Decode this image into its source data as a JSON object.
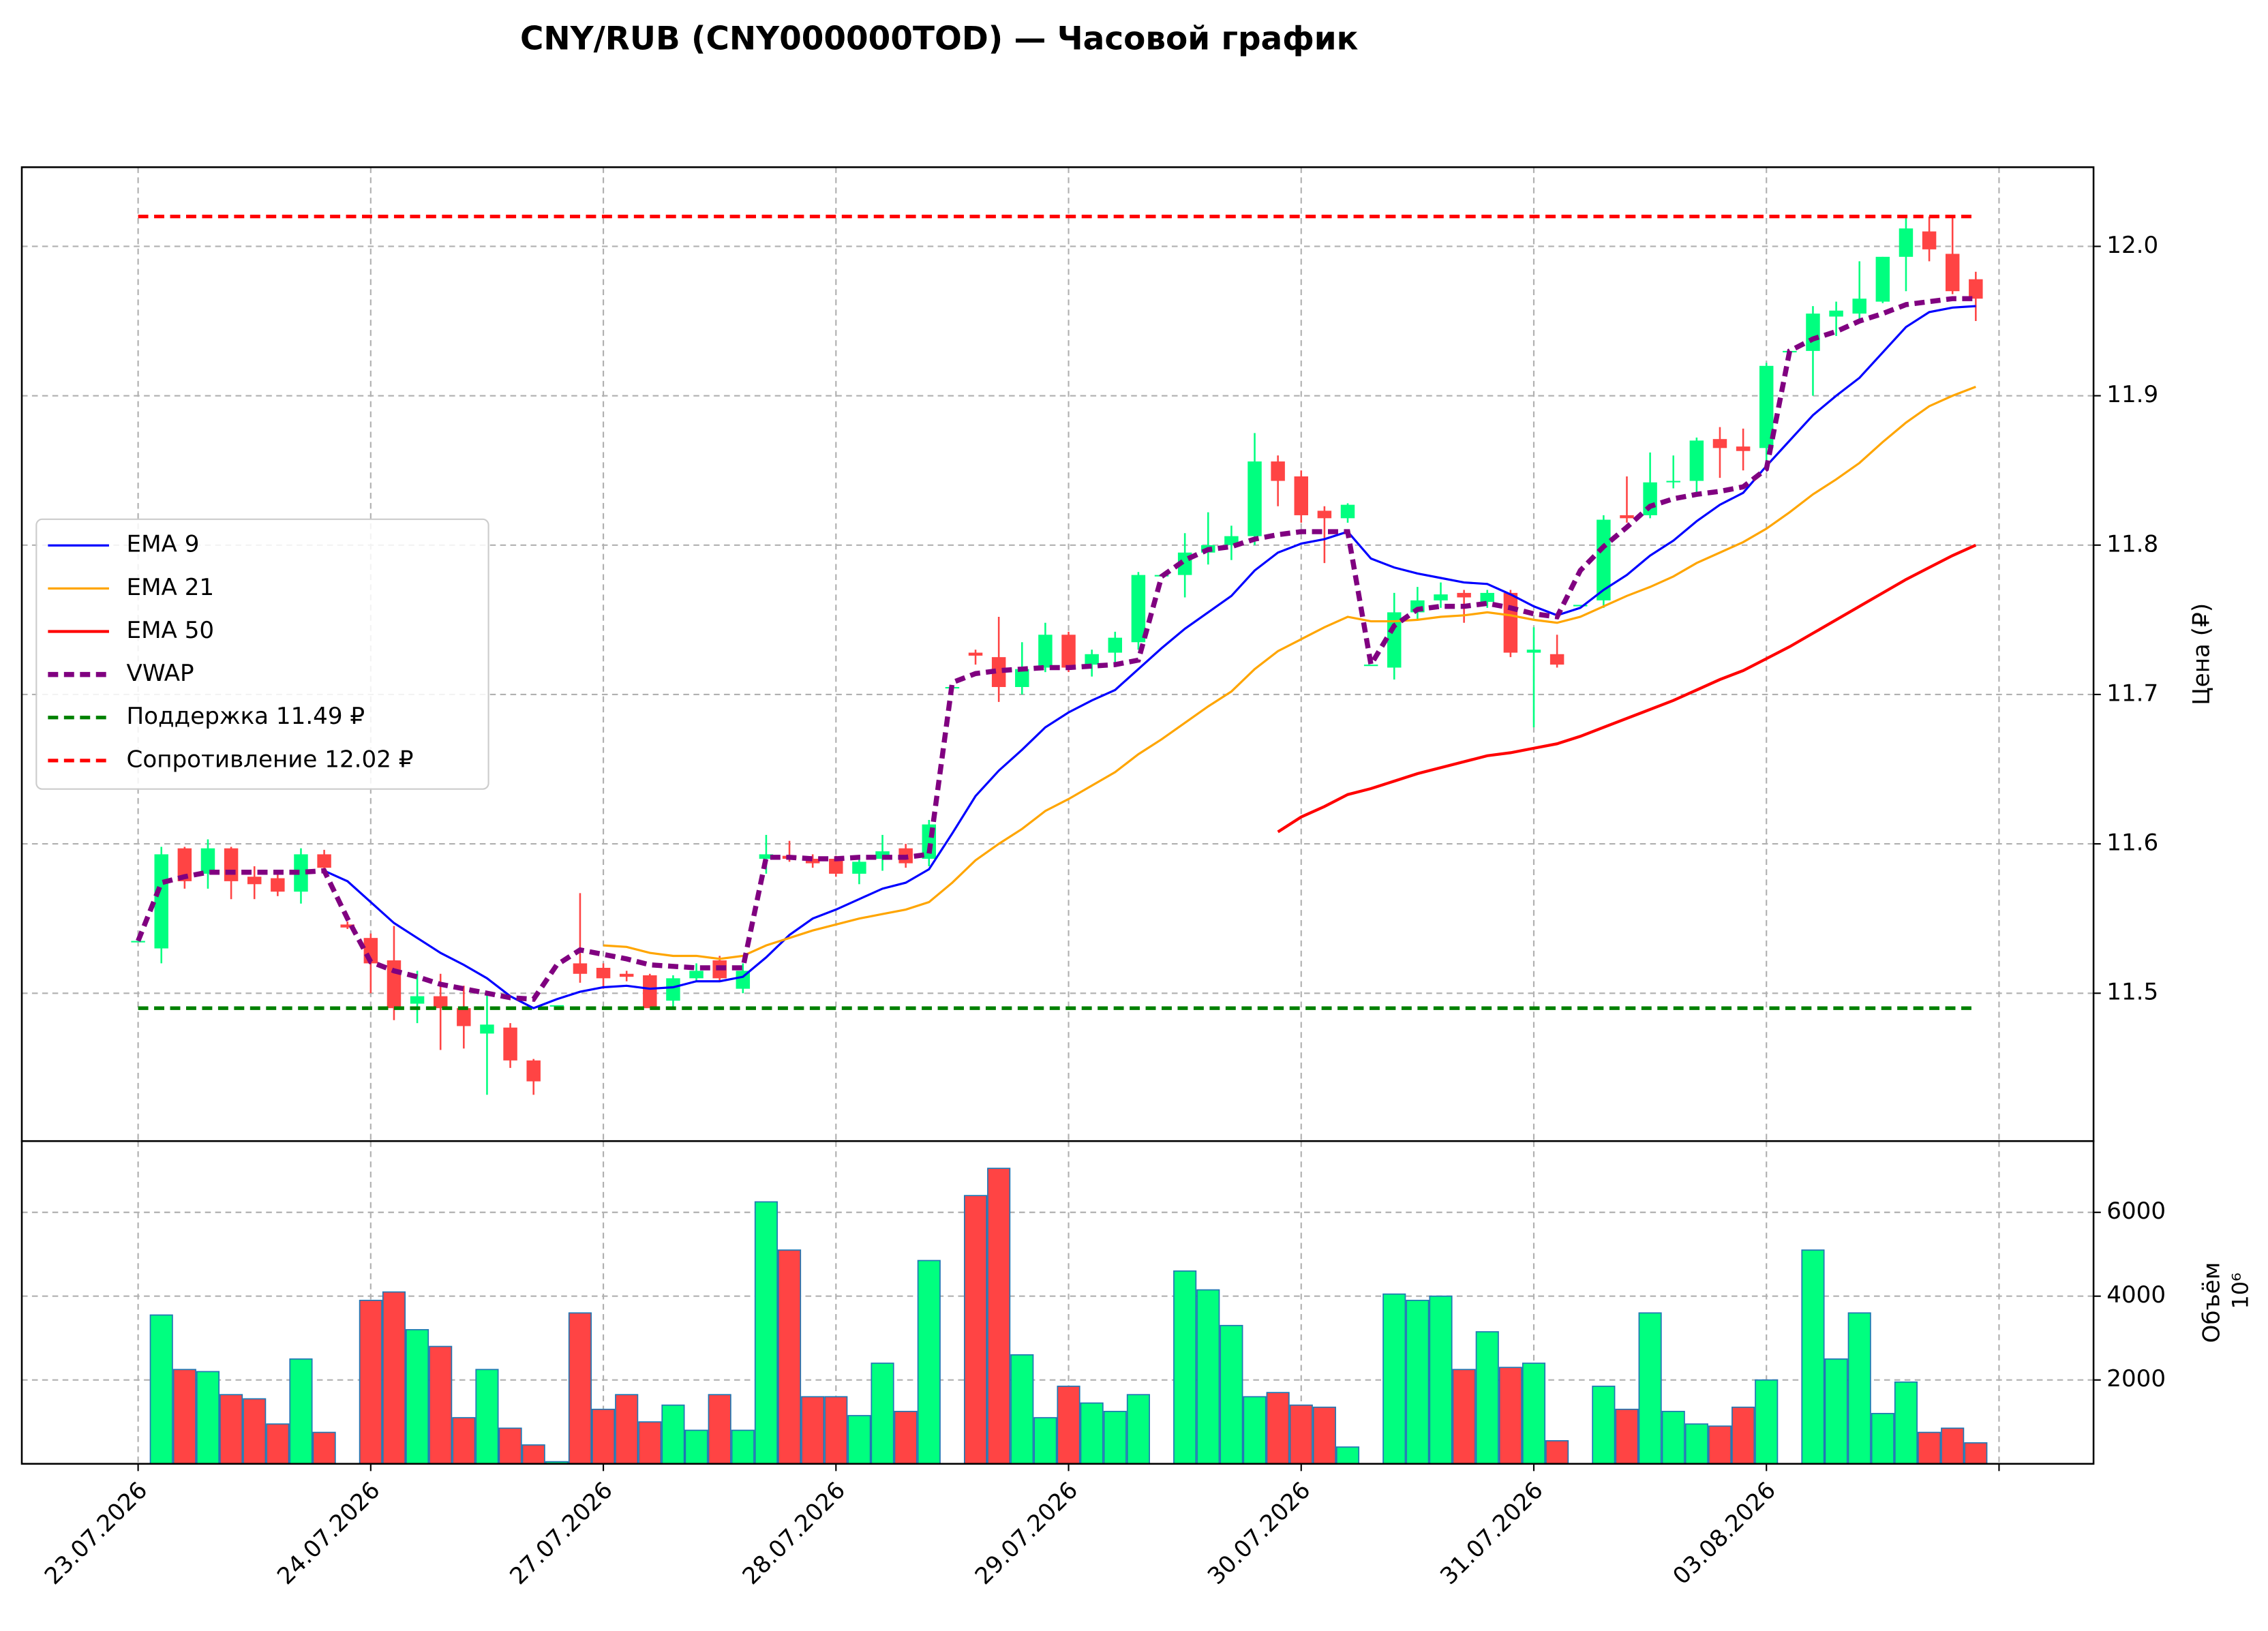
{
  "chart_data": {
    "type": "candlestick",
    "title": "CNY/RUB (CNY000000TOD) — Часовой график",
    "ylabel": "Цена (₽)",
    "x": [
      0,
      1,
      2,
      3,
      4,
      5,
      6,
      7,
      8,
      9,
      10,
      11,
      12,
      13,
      14,
      15,
      16,
      17,
      18,
      19,
      20,
      21,
      22,
      23,
      24,
      25,
      26,
      27,
      28,
      29,
      30,
      31,
      32,
      33,
      34,
      35,
      36,
      37,
      38,
      39,
      40,
      41,
      42,
      43,
      44,
      45,
      46,
      47,
      48,
      49,
      50,
      51,
      52,
      53,
      54,
      55,
      56,
      57,
      58,
      59,
      60,
      61,
      62,
      63,
      64,
      65,
      66,
      67,
      68,
      69,
      70,
      71,
      72,
      73,
      74,
      75,
      76,
      77,
      78,
      79
    ],
    "xlim": [
      -5,
      84.0625
    ],
    "xticks": [
      {
        "value": 0,
        "label": "23.07.2026"
      },
      {
        "value": 10,
        "label": "24.07.2026"
      },
      {
        "value": 20,
        "label": "27.07.2026"
      },
      {
        "value": 30,
        "label": "28.07.2026"
      },
      {
        "value": 40,
        "label": "29.07.2026"
      },
      {
        "value": 50,
        "label": "30.07.2026"
      },
      {
        "value": 60,
        "label": "31.07.2026"
      },
      {
        "value": 70,
        "label": "03.08.2026"
      },
      {
        "value": 80,
        "label": null
      }
    ],
    "ylim": [
      11.401,
      12.053
    ],
    "yticks": [
      11.5,
      11.6,
      11.7,
      11.8,
      11.9,
      {
        "value": 12,
        "label": "12.0"
      }
    ],
    "grid": true,
    "up_color": "#00ff7f",
    "down_color": "#ff4444",
    "open": [
      11.535,
      11.53,
      11.597,
      11.58,
      11.597,
      11.578,
      11.577,
      11.568,
      11.593,
      11.546,
      11.537,
      11.522,
      11.493,
      11.498,
      11.49,
      11.473,
      11.477,
      11.455,
      11.492,
      11.52,
      11.517,
      11.513,
      11.512,
      11.495,
      11.51,
      11.522,
      11.503,
      11.59,
      11.592,
      11.59,
      11.59,
      11.58,
      11.59,
      11.597,
      11.59,
      11.705,
      11.728,
      11.725,
      11.705,
      11.718,
      11.74,
      11.72,
      11.728,
      11.735,
      11.78,
      11.78,
      11.795,
      11.8,
      11.806,
      11.856,
      11.846,
      11.823,
      11.818,
      11.72,
      11.718,
      11.755,
      11.763,
      11.768,
      11.762,
      11.768,
      11.728,
      11.727,
      11.76,
      11.763,
      11.82,
      11.82,
      11.843,
      11.843,
      11.871,
      11.866,
      11.865,
      11.93,
      11.93,
      11.953,
      11.955,
      11.963,
      11.993,
      12.01,
      11.995,
      11.978
    ],
    "high": [
      11.535,
      11.598,
      11.598,
      11.603,
      11.598,
      11.585,
      11.58,
      11.597,
      11.596,
      11.548,
      11.54,
      11.545,
      11.515,
      11.513,
      11.505,
      11.5,
      11.48,
      11.456,
      11.492,
      11.567,
      11.52,
      11.515,
      11.513,
      11.512,
      11.52,
      11.525,
      11.52,
      11.606,
      11.602,
      11.593,
      11.592,
      11.59,
      11.606,
      11.6,
      11.616,
      11.705,
      11.73,
      11.752,
      11.735,
      11.748,
      11.742,
      11.73,
      11.742,
      11.782,
      11.78,
      11.808,
      11.822,
      11.813,
      11.875,
      11.86,
      11.85,
      11.826,
      11.828,
      11.72,
      11.768,
      11.772,
      11.775,
      11.77,
      11.77,
      11.77,
      11.745,
      11.74,
      11.76,
      11.82,
      11.846,
      11.862,
      11.86,
      11.872,
      11.879,
      11.878,
      11.922,
      11.93,
      11.96,
      11.963,
      11.99,
      11.993,
      12.02,
      12.02,
      12.02,
      11.983
    ],
    "low": [
      11.535,
      11.52,
      11.57,
      11.57,
      11.563,
      11.563,
      11.565,
      11.56,
      11.582,
      11.543,
      11.5,
      11.482,
      11.48,
      11.462,
      11.463,
      11.432,
      11.45,
      11.432,
      11.492,
      11.507,
      11.503,
      11.508,
      11.49,
      11.49,
      11.508,
      11.508,
      11.5,
      11.58,
      11.588,
      11.584,
      11.578,
      11.573,
      11.582,
      11.584,
      11.585,
      11.705,
      11.72,
      11.695,
      11.7,
      11.715,
      11.715,
      11.712,
      11.72,
      11.73,
      11.78,
      11.765,
      11.787,
      11.79,
      11.8,
      11.826,
      11.815,
      11.788,
      11.815,
      11.72,
      11.71,
      11.75,
      11.758,
      11.748,
      11.758,
      11.725,
      11.678,
      11.718,
      11.76,
      11.758,
      11.815,
      11.818,
      11.838,
      11.835,
      11.845,
      11.85,
      11.855,
      11.93,
      11.9,
      11.94,
      11.95,
      11.962,
      11.97,
      11.99,
      11.968,
      11.95
    ],
    "close": [
      11.535,
      11.593,
      11.575,
      11.597,
      11.575,
      11.573,
      11.568,
      11.593,
      11.584,
      11.544,
      11.52,
      11.49,
      11.498,
      11.49,
      11.478,
      11.479,
      11.455,
      11.441,
      11.492,
      11.513,
      11.51,
      11.511,
      11.49,
      11.51,
      11.515,
      11.51,
      11.515,
      11.593,
      11.59,
      11.587,
      11.58,
      11.588,
      11.595,
      11.587,
      11.613,
      11.705,
      11.726,
      11.705,
      11.717,
      11.74,
      11.718,
      11.727,
      11.738,
      11.78,
      11.78,
      11.795,
      11.8,
      11.806,
      11.856,
      11.843,
      11.82,
      11.818,
      11.827,
      11.72,
      11.755,
      11.763,
      11.767,
      11.765,
      11.768,
      11.728,
      11.73,
      11.72,
      11.76,
      11.817,
      11.818,
      11.842,
      11.843,
      11.87,
      11.865,
      11.863,
      11.92,
      11.93,
      11.955,
      11.957,
      11.965,
      11.993,
      12.012,
      11.998,
      11.97,
      11.965
    ],
    "series": [
      {
        "name": "EMA 9",
        "color": "#0000ff",
        "linewidth": 1.5,
        "linestyle": "solid",
        "values": [
          null,
          null,
          null,
          null,
          null,
          null,
          null,
          null,
          11.582,
          11.575,
          11.561,
          11.547,
          11.537,
          11.527,
          11.519,
          11.51,
          11.498,
          11.49,
          11.496,
          11.501,
          11.504,
          11.505,
          11.503,
          11.504,
          11.508,
          11.508,
          11.511,
          11.524,
          11.539,
          11.55,
          11.556,
          11.563,
          11.57,
          11.574,
          11.583,
          11.607,
          11.632,
          11.649,
          11.663,
          11.678,
          11.688,
          11.696,
          11.703,
          11.717,
          11.731,
          11.744,
          11.755,
          11.766,
          11.783,
          11.795,
          11.801,
          11.804,
          11.809,
          11.791,
          11.785,
          11.781,
          11.778,
          11.775,
          11.774,
          11.767,
          11.759,
          11.753,
          11.758,
          11.77,
          11.78,
          11.793,
          11.803,
          11.816,
          11.827,
          11.835,
          11.853,
          11.87,
          11.887,
          11.9,
          11.912,
          11.929,
          11.946,
          11.956,
          11.959,
          11.96
        ]
      },
      {
        "name": "EMA 21",
        "color": "#ffa500",
        "linewidth": 1.5,
        "linestyle": "solid",
        "values": [
          null,
          null,
          null,
          null,
          null,
          null,
          null,
          null,
          null,
          null,
          null,
          null,
          null,
          null,
          null,
          null,
          null,
          null,
          null,
          null,
          11.532,
          11.531,
          11.527,
          11.525,
          11.525,
          11.523,
          11.525,
          11.532,
          11.537,
          11.542,
          11.546,
          11.55,
          11.553,
          11.556,
          11.561,
          11.574,
          11.589,
          11.6,
          11.61,
          11.622,
          11.63,
          11.639,
          11.648,
          11.66,
          11.67,
          11.681,
          11.692,
          11.702,
          11.717,
          11.729,
          11.737,
          11.745,
          11.752,
          11.749,
          11.749,
          11.75,
          11.752,
          11.753,
          11.755,
          11.753,
          11.75,
          11.748,
          11.752,
          11.759,
          11.766,
          11.772,
          11.779,
          11.788,
          11.795,
          11.802,
          11.811,
          11.822,
          11.834,
          11.844,
          11.855,
          11.869,
          11.882,
          11.893,
          11.9,
          11.906
        ]
      },
      {
        "name": "EMA 50",
        "color": "#ff0000",
        "linewidth": 2,
        "linestyle": "solid",
        "values": [
          null,
          null,
          null,
          null,
          null,
          null,
          null,
          null,
          null,
          null,
          null,
          null,
          null,
          null,
          null,
          null,
          null,
          null,
          null,
          null,
          null,
          null,
          null,
          null,
          null,
          null,
          null,
          null,
          null,
          null,
          null,
          null,
          null,
          null,
          null,
          null,
          null,
          null,
          null,
          null,
          null,
          null,
          null,
          null,
          null,
          null,
          null,
          null,
          null,
          11.608,
          11.618,
          11.625,
          11.633,
          11.637,
          11.642,
          11.647,
          11.651,
          11.655,
          11.659,
          11.661,
          11.664,
          11.667,
          11.672,
          11.678,
          11.684,
          11.69,
          11.696,
          11.703,
          11.71,
          11.716,
          11.724,
          11.732,
          11.741,
          11.75,
          11.759,
          11.768,
          11.777,
          11.785,
          11.793,
          11.8
        ]
      },
      {
        "name": "VWAP",
        "color": "#800080",
        "linewidth": 3.5,
        "linestyle": "dashed",
        "values": [
          11.535,
          11.574,
          11.578,
          11.581,
          11.581,
          11.581,
          11.581,
          11.581,
          11.582,
          11.55,
          11.521,
          11.515,
          11.511,
          11.506,
          11.503,
          11.5,
          11.497,
          11.496,
          11.519,
          11.529,
          11.526,
          11.523,
          11.519,
          11.518,
          11.517,
          11.517,
          11.517,
          11.591,
          11.591,
          11.59,
          11.59,
          11.591,
          11.591,
          11.591,
          11.593,
          11.708,
          11.714,
          11.716,
          11.717,
          11.718,
          11.718,
          11.719,
          11.72,
          11.723,
          11.779,
          11.79,
          11.797,
          11.799,
          11.804,
          11.807,
          11.809,
          11.809,
          11.809,
          11.72,
          11.746,
          11.757,
          11.759,
          11.759,
          11.761,
          11.758,
          11.754,
          11.752,
          11.783,
          11.799,
          11.812,
          11.826,
          11.831,
          11.834,
          11.836,
          11.839,
          11.851,
          11.93,
          11.938,
          11.943,
          11.95,
          11.955,
          11.961,
          11.963,
          11.965,
          11.965
        ]
      }
    ],
    "levels": [
      {
        "name": "Поддержка 11.49 ₽",
        "value": 11.49,
        "color": "#008000",
        "linestyle": "dashed"
      },
      {
        "name": "Сопротивление 12.02 ₽",
        "value": 12.02,
        "color": "#ff0000",
        "linestyle": "dashed"
      }
    ],
    "legend": "center left",
    "volume": {
      "ylabel": "Объём",
      "offset_label": "10⁶",
      "ylim": [
        0,
        7700
      ],
      "yticks": [
        2000,
        4000,
        6000
      ],
      "edgecolor": "#1f77b4",
      "values": [
        0,
        3550,
        2250,
        2200,
        1650,
        1550,
        950,
        2500,
        750,
        0,
        3900,
        4100,
        3200,
        2800,
        1100,
        2250,
        850,
        450,
        50,
        3600,
        1300,
        1650,
        1000,
        1400,
        800,
        1650,
        800,
        6250,
        5100,
        1600,
        1600,
        1150,
        2400,
        1250,
        4850,
        0,
        6400,
        7050,
        2600,
        1100,
        1850,
        1450,
        1250,
        1650,
        0,
        4600,
        4150,
        3300,
        1600,
        1700,
        1400,
        1350,
        400,
        0,
        4050,
        3900,
        4000,
        2250,
        3150,
        2300,
        2400,
        550,
        0,
        1850,
        1300,
        3600,
        1250,
        950,
        900,
        1350,
        2000,
        0,
        5100,
        2500,
        3600,
        1200,
        1950,
        750,
        850,
        500
      ]
    }
  }
}
